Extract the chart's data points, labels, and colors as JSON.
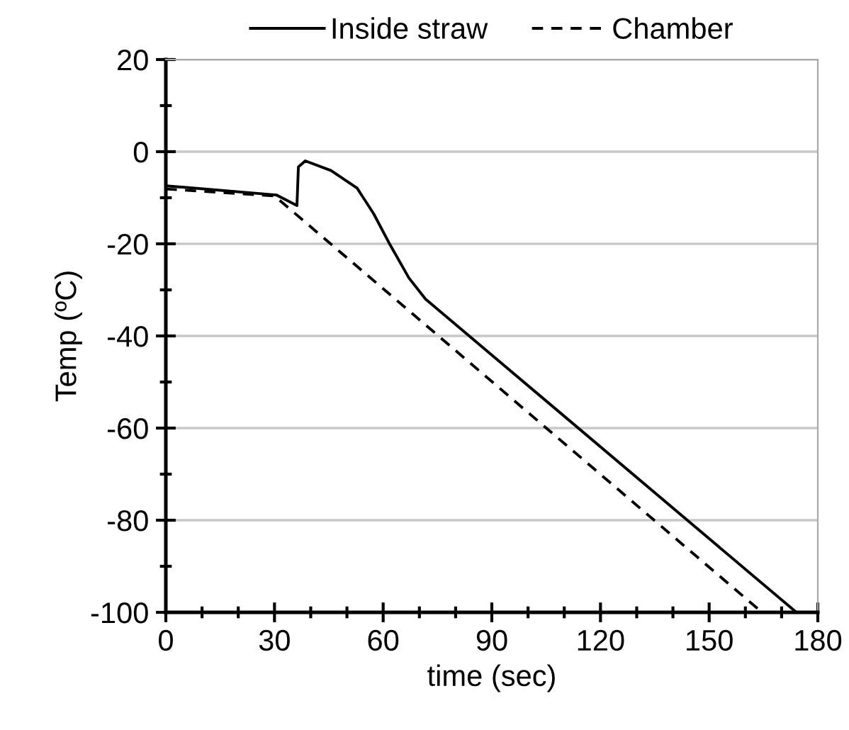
{
  "chart_data": {
    "type": "line",
    "xlabel": "time (sec)",
    "ylabel": "Temp (ºC)",
    "xlim": [
      0,
      180
    ],
    "ylim": [
      -100,
      20
    ],
    "xticks": [
      0,
      {
        "value": 10,
        "label": null
      },
      {
        "value": 20,
        "label": null
      },
      30,
      {
        "value": 40,
        "label": null
      },
      {
        "value": 50,
        "label": null
      },
      60,
      {
        "value": 70,
        "label": null
      },
      {
        "value": 80,
        "label": null
      },
      90,
      {
        "value": 100,
        "label": null
      },
      {
        "value": 110,
        "label": null
      },
      120,
      {
        "value": 130,
        "label": null
      },
      {
        "value": 140,
        "label": null
      },
      150,
      {
        "value": 160,
        "label": null
      },
      {
        "value": 170,
        "label": null
      },
      180
    ],
    "yticks": [
      -100,
      {
        "value": -90,
        "label": null
      },
      -80,
      {
        "value": -70,
        "label": null
      },
      -60,
      {
        "value": -50,
        "label": null
      },
      -40,
      {
        "value": -30,
        "label": null
      },
      -20,
      {
        "value": -10,
        "label": null
      },
      0,
      {
        "value": 10,
        "label": null
      },
      20
    ],
    "grid": "y",
    "legend": "top",
    "marker": "none",
    "series": [
      {
        "name": "Inside straw",
        "color": "#000000",
        "line_style": "solid",
        "x": [
          0,
          30.5,
          36.2,
          36.6,
          38.5,
          45.6,
          52.8,
          57.4,
          61.9,
          67.1,
          71.7,
          174.1
        ],
        "values": [
          -7.4,
          -9.4,
          -11.7,
          -3.3,
          -2.0,
          -4.1,
          -7.9,
          -13.5,
          -20.2,
          -27.4,
          -32,
          -100
        ]
      },
      {
        "name": "Chamber",
        "color": "#000000",
        "line_style": "dashed",
        "x": [
          0,
          30,
          164.6
        ],
        "values": [
          -8.1,
          -9.6,
          -100
        ]
      }
    ]
  }
}
